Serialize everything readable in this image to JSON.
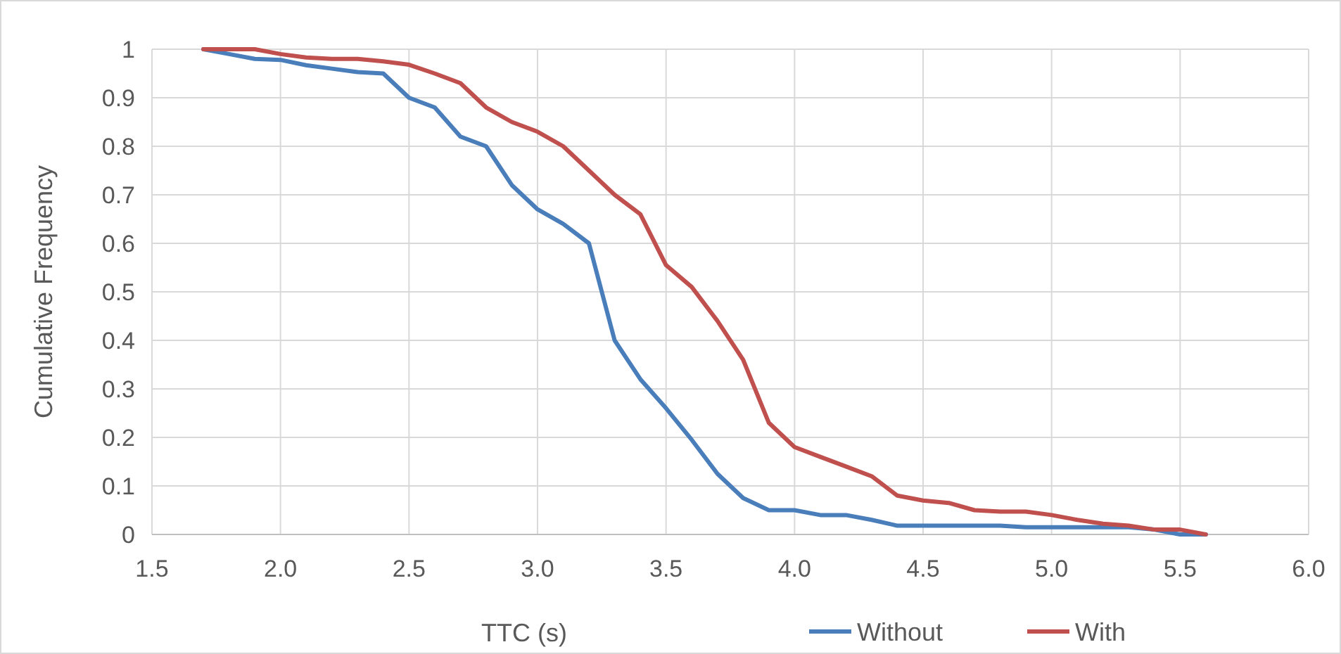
{
  "chart_data": {
    "type": "line",
    "xlabel": "TTC (s)",
    "ylabel": "Cumulative Frequency",
    "x": [
      1.7,
      1.8,
      1.9,
      2.0,
      2.1,
      2.2,
      2.3,
      2.4,
      2.5,
      2.6,
      2.7,
      2.8,
      2.9,
      3.0,
      3.1,
      3.2,
      3.3,
      3.4,
      3.5,
      3.6,
      3.7,
      3.8,
      3.9,
      4.0,
      4.1,
      4.2,
      4.3,
      4.4,
      4.5,
      4.6,
      4.7,
      4.8,
      4.9,
      5.0,
      5.1,
      5.2,
      5.3,
      5.4,
      5.5,
      5.6
    ],
    "series": [
      {
        "name": "Without",
        "color": "#4a7ebb",
        "values": [
          1,
          0.99,
          0.98,
          0.978,
          0.967,
          0.96,
          0.953,
          0.95,
          0.9,
          0.88,
          0.82,
          0.8,
          0.72,
          0.67,
          0.64,
          0.6,
          0.4,
          0.32,
          0.26,
          0.195,
          0.125,
          0.075,
          0.05,
          0.05,
          0.04,
          0.04,
          0.03,
          0.018,
          0.018,
          0.018,
          0.018,
          0.018,
          0.015,
          0.015,
          0.015,
          0.015,
          0.015,
          0.01,
          0,
          0
        ]
      },
      {
        "name": "With",
        "color": "#c0504d",
        "values": [
          1,
          1,
          1,
          0.99,
          0.983,
          0.98,
          0.98,
          0.975,
          0.968,
          0.95,
          0.93,
          0.88,
          0.85,
          0.83,
          0.8,
          0.75,
          0.7,
          0.66,
          0.555,
          0.51,
          0.44,
          0.36,
          0.23,
          0.18,
          0.16,
          0.14,
          0.12,
          0.08,
          0.07,
          0.065,
          0.05,
          0.047,
          0.047,
          0.04,
          0.03,
          0.022,
          0.018,
          0.01,
          0.01,
          0
        ]
      }
    ],
    "xlim": [
      1.5,
      6.0
    ],
    "xticks": [
      {
        "value": 1.5,
        "label": "1.5"
      },
      {
        "value": 2,
        "label": "2.0"
      },
      {
        "value": 2.5,
        "label": "2.5"
      },
      {
        "value": 3,
        "label": "3.0"
      },
      {
        "value": 3.5,
        "label": "3.5"
      },
      {
        "value": 4,
        "label": "4.0"
      },
      {
        "value": 4.5,
        "label": "4.5"
      },
      {
        "value": 5,
        "label": "5.0"
      },
      {
        "value": 5.5,
        "label": "5.5"
      },
      {
        "value": 6,
        "label": "6.0"
      }
    ],
    "ylim": [
      0,
      1
    ],
    "yticks": [
      0,
      0.1,
      0.2,
      0.3,
      0.4,
      0.5,
      0.6,
      0.7,
      0.8,
      0.9,
      1
    ],
    "grid": true,
    "legend": "bottom right",
    "marker": "none",
    "line_style": "solid"
  }
}
